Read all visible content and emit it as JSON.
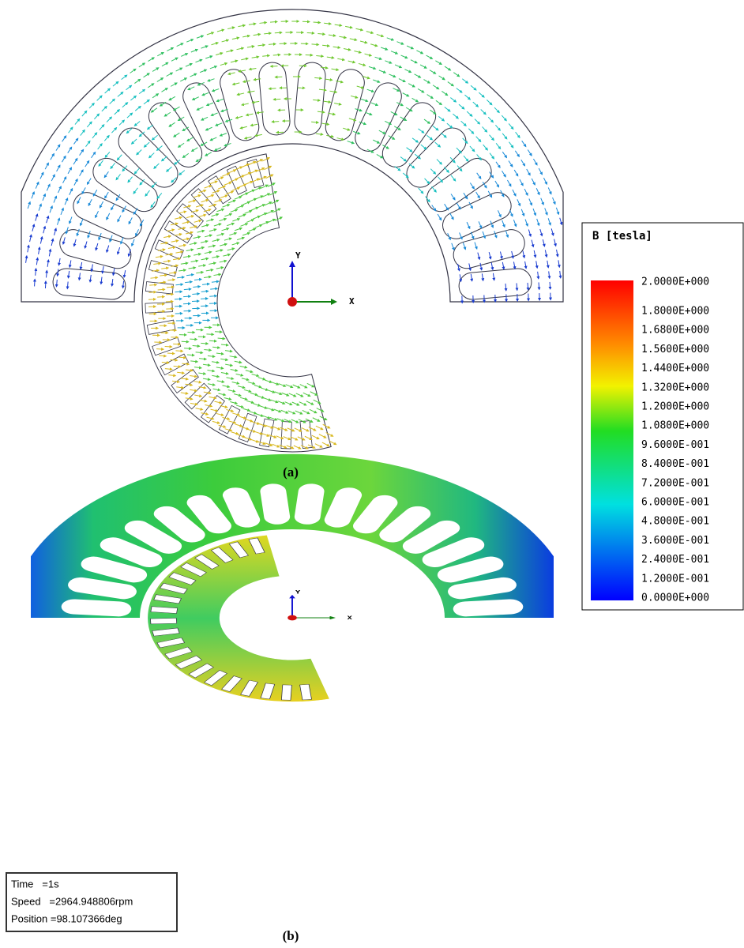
{
  "figure": {
    "panels": [
      {
        "label": "(a)",
        "axes": {
          "x": "X",
          "y": "Y"
        }
      },
      {
        "label": "(b)",
        "axes": {
          "x": "X",
          "y": "Y"
        }
      }
    ],
    "legend": {
      "title": "B [tesla]",
      "labels": [
        "2.0000E+000",
        "1.8000E+000",
        "1.6800E+000",
        "1.5600E+000",
        "1.4400E+000",
        "1.3200E+000",
        "1.2000E+000",
        "1.0800E+000",
        "9.6000E-001",
        "8.4000E-001",
        "7.2000E-001",
        "6.0000E-001",
        "4.8000E-001",
        "3.6000E-001",
        "2.4000E-001",
        "1.2000E-001",
        "0.0000E+000"
      ]
    },
    "info": {
      "lines": [
        "Time   =1s",
        "Speed   =2964.948806rpm",
        "Position =98.107366deg"
      ]
    }
  }
}
